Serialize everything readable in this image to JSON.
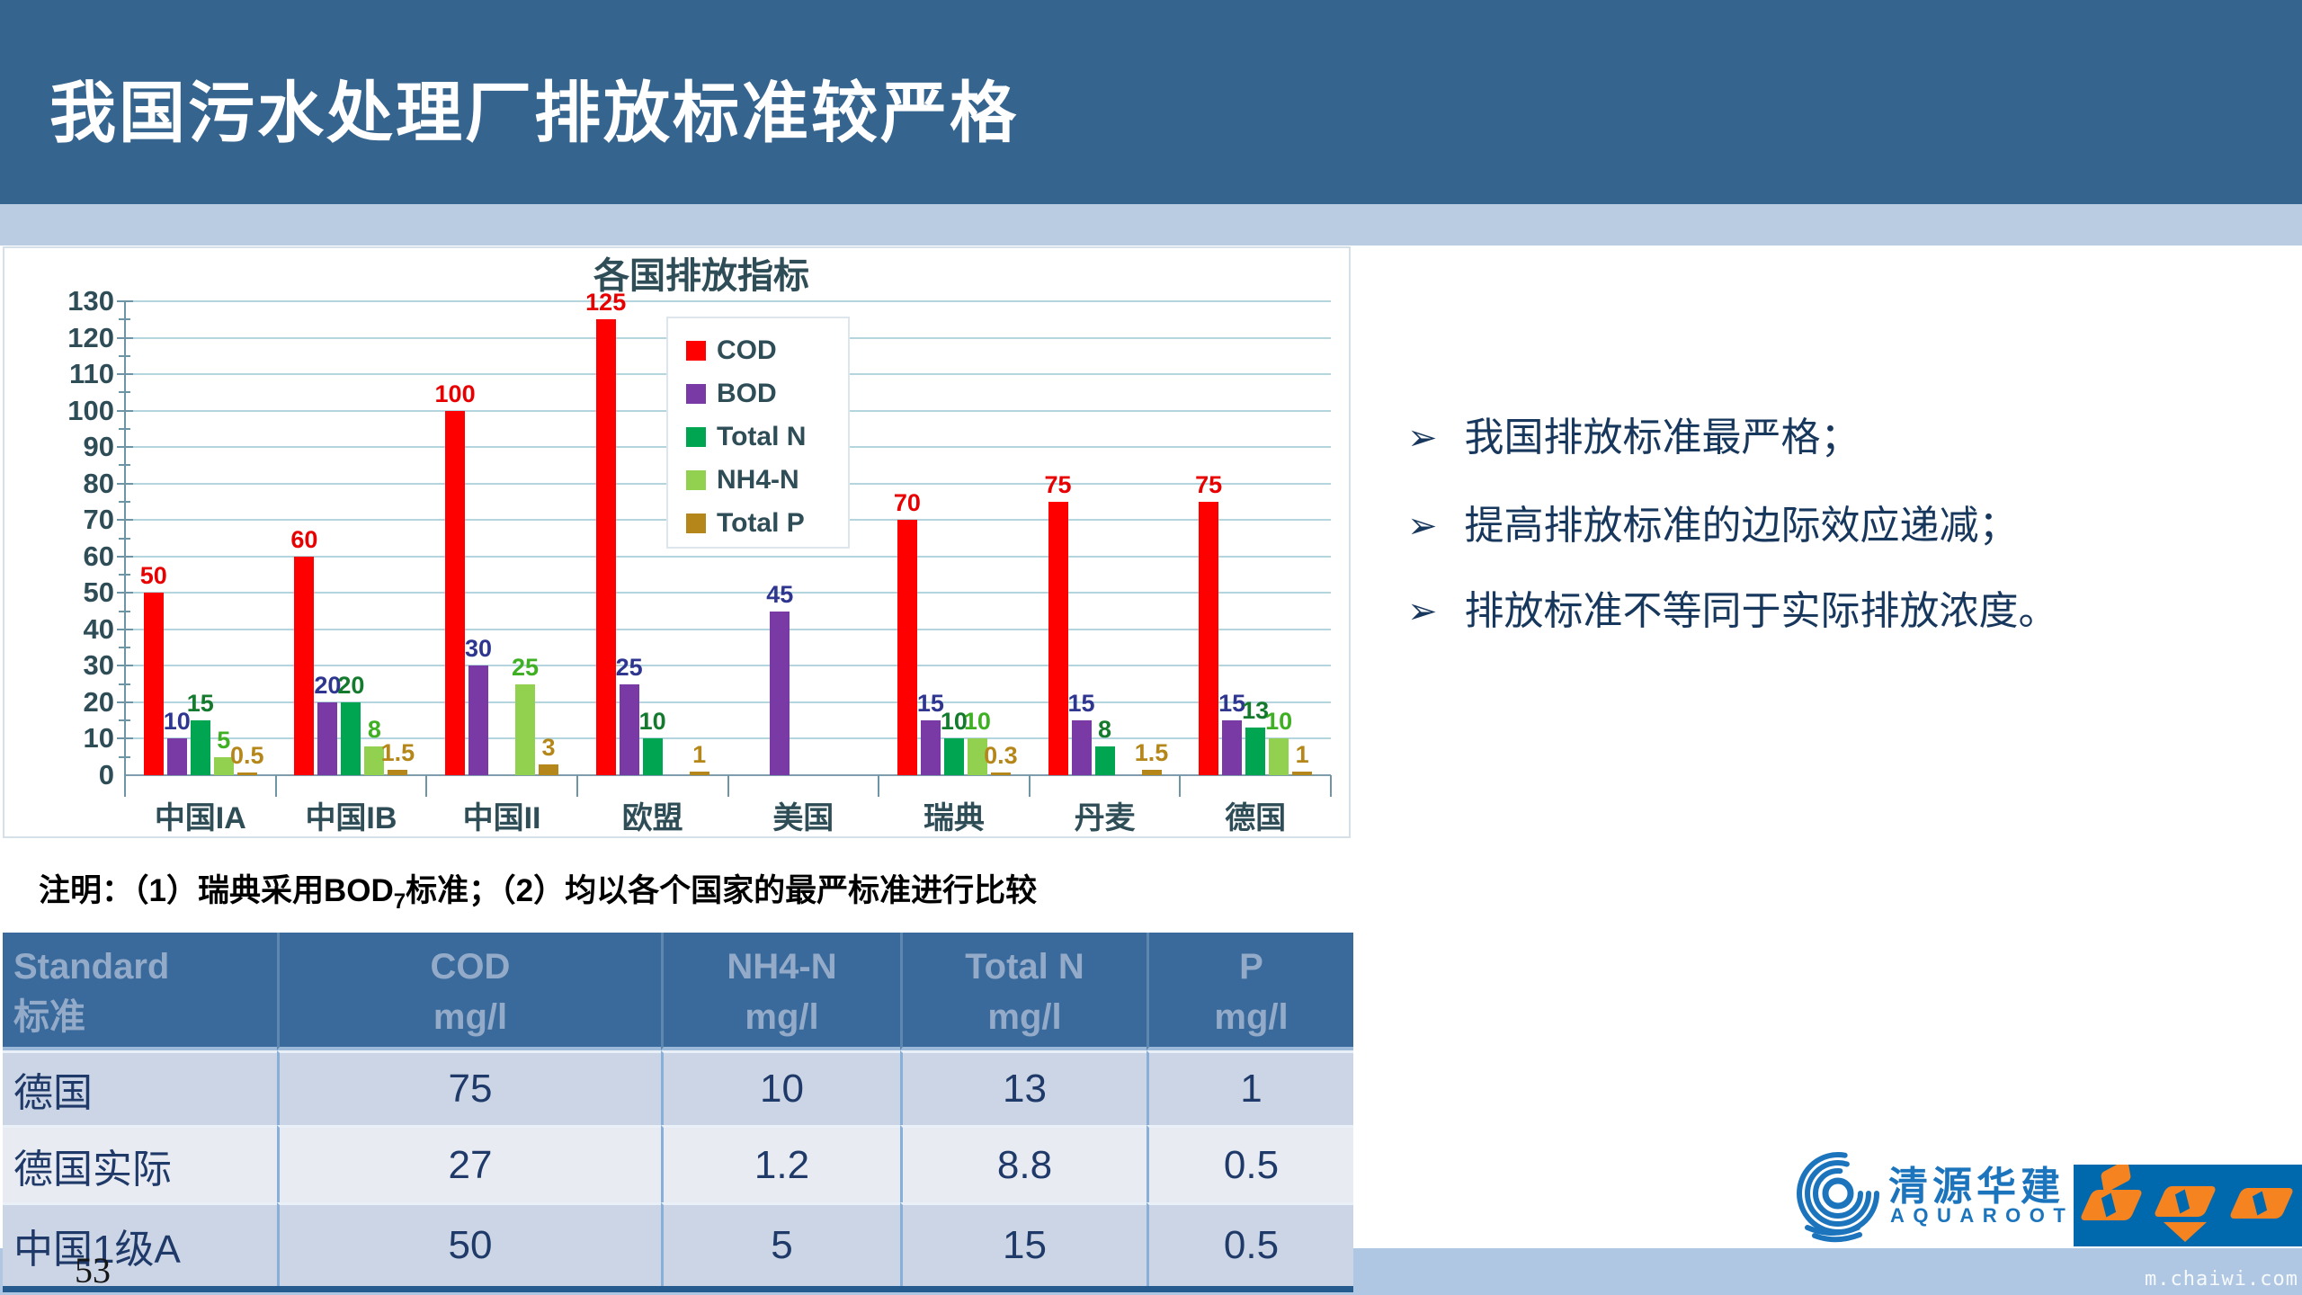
{
  "header": {
    "title": "我国污水处理厂排放标准较严格"
  },
  "bullets": {
    "marker": "➢",
    "items": [
      "我国排放标准最严格；",
      "提高排放标准的边际效应递减；",
      "排放标准不等同于实际排放浓度。"
    ]
  },
  "chart_data": {
    "type": "bar",
    "title": "各国排放指标",
    "categories": [
      "中国IA",
      "中国IB",
      "中国II",
      "欧盟",
      "美国",
      "瑞典",
      "丹麦",
      "德国"
    ],
    "series": [
      {
        "name": "COD",
        "color": "#FF0000",
        "label_color": "#E80000",
        "values": [
          50,
          60,
          100,
          125,
          null,
          70,
          75,
          75
        ]
      },
      {
        "name": "BOD",
        "color": "#7A3AA6",
        "label_color": "#2F3690",
        "values": [
          10,
          20,
          30,
          25,
          45,
          15,
          15,
          15
        ]
      },
      {
        "name": "Total N",
        "color": "#00A551",
        "label_color": "#147A2E",
        "values": [
          15,
          20,
          null,
          10,
          null,
          10,
          8,
          13
        ]
      },
      {
        "name": "NH4-N",
        "color": "#92D04F",
        "label_color": "#3FB024",
        "values": [
          5,
          8,
          25,
          null,
          null,
          10,
          null,
          10
        ]
      },
      {
        "name": "Total P",
        "color": "#B5871A",
        "label_color": "#B5871A",
        "values": [
          0.5,
          1.5,
          3,
          1,
          null,
          0.3,
          1.5,
          1
        ]
      }
    ],
    "ylim": [
      0,
      130
    ],
    "ytick_step": 10,
    "grid": true,
    "legend_position": "inside-top-center",
    "note": "注明：（1）瑞典采用BOD7标准；（2）均以各个国家的最严标准进行比较"
  },
  "note": {
    "part1": "注明：（1）瑞典采用BOD",
    "sub": "7",
    "part2": "标准；（2）均以各个国家的最严标准进行比较"
  },
  "table": {
    "headers": [
      {
        "line1": "Standard",
        "line2": "标准"
      },
      {
        "line1": "COD",
        "line2": "mg/l"
      },
      {
        "line1": "NH4-N",
        "line2": "mg/l"
      },
      {
        "line1": "Total N",
        "line2": "mg/l"
      },
      {
        "line1": "P",
        "line2": "mg/l"
      }
    ],
    "rows": [
      {
        "label": "德国",
        "values": [
          "75",
          "10",
          "13",
          "1"
        ]
      },
      {
        "label": "德国实际",
        "values": [
          "27",
          "1.2",
          "8.8",
          "0.5"
        ]
      },
      {
        "label": "中国1级A",
        "values": [
          "50",
          "5",
          "15",
          "0.5"
        ]
      }
    ]
  },
  "footer": {
    "page_number": "53",
    "watermark": "m.chaiwi.com"
  },
  "logos": {
    "aquaroot_cn": "清源华建",
    "aquaroot_en": "AQUAROOT"
  },
  "colors": {
    "header_band": "#35648F",
    "accent_stripe": "#B9CCE1",
    "footer_strip": "#AFC7E2",
    "table_header_bg": "#3A6A9B",
    "table_row_a": "#CBD5E5",
    "table_row_b": "#E9EBF3",
    "bullet_text": "#17375D",
    "logo_blue": "#1C75BC",
    "igu_blue": "#0069AD",
    "igu_orange": "#F5831F"
  }
}
